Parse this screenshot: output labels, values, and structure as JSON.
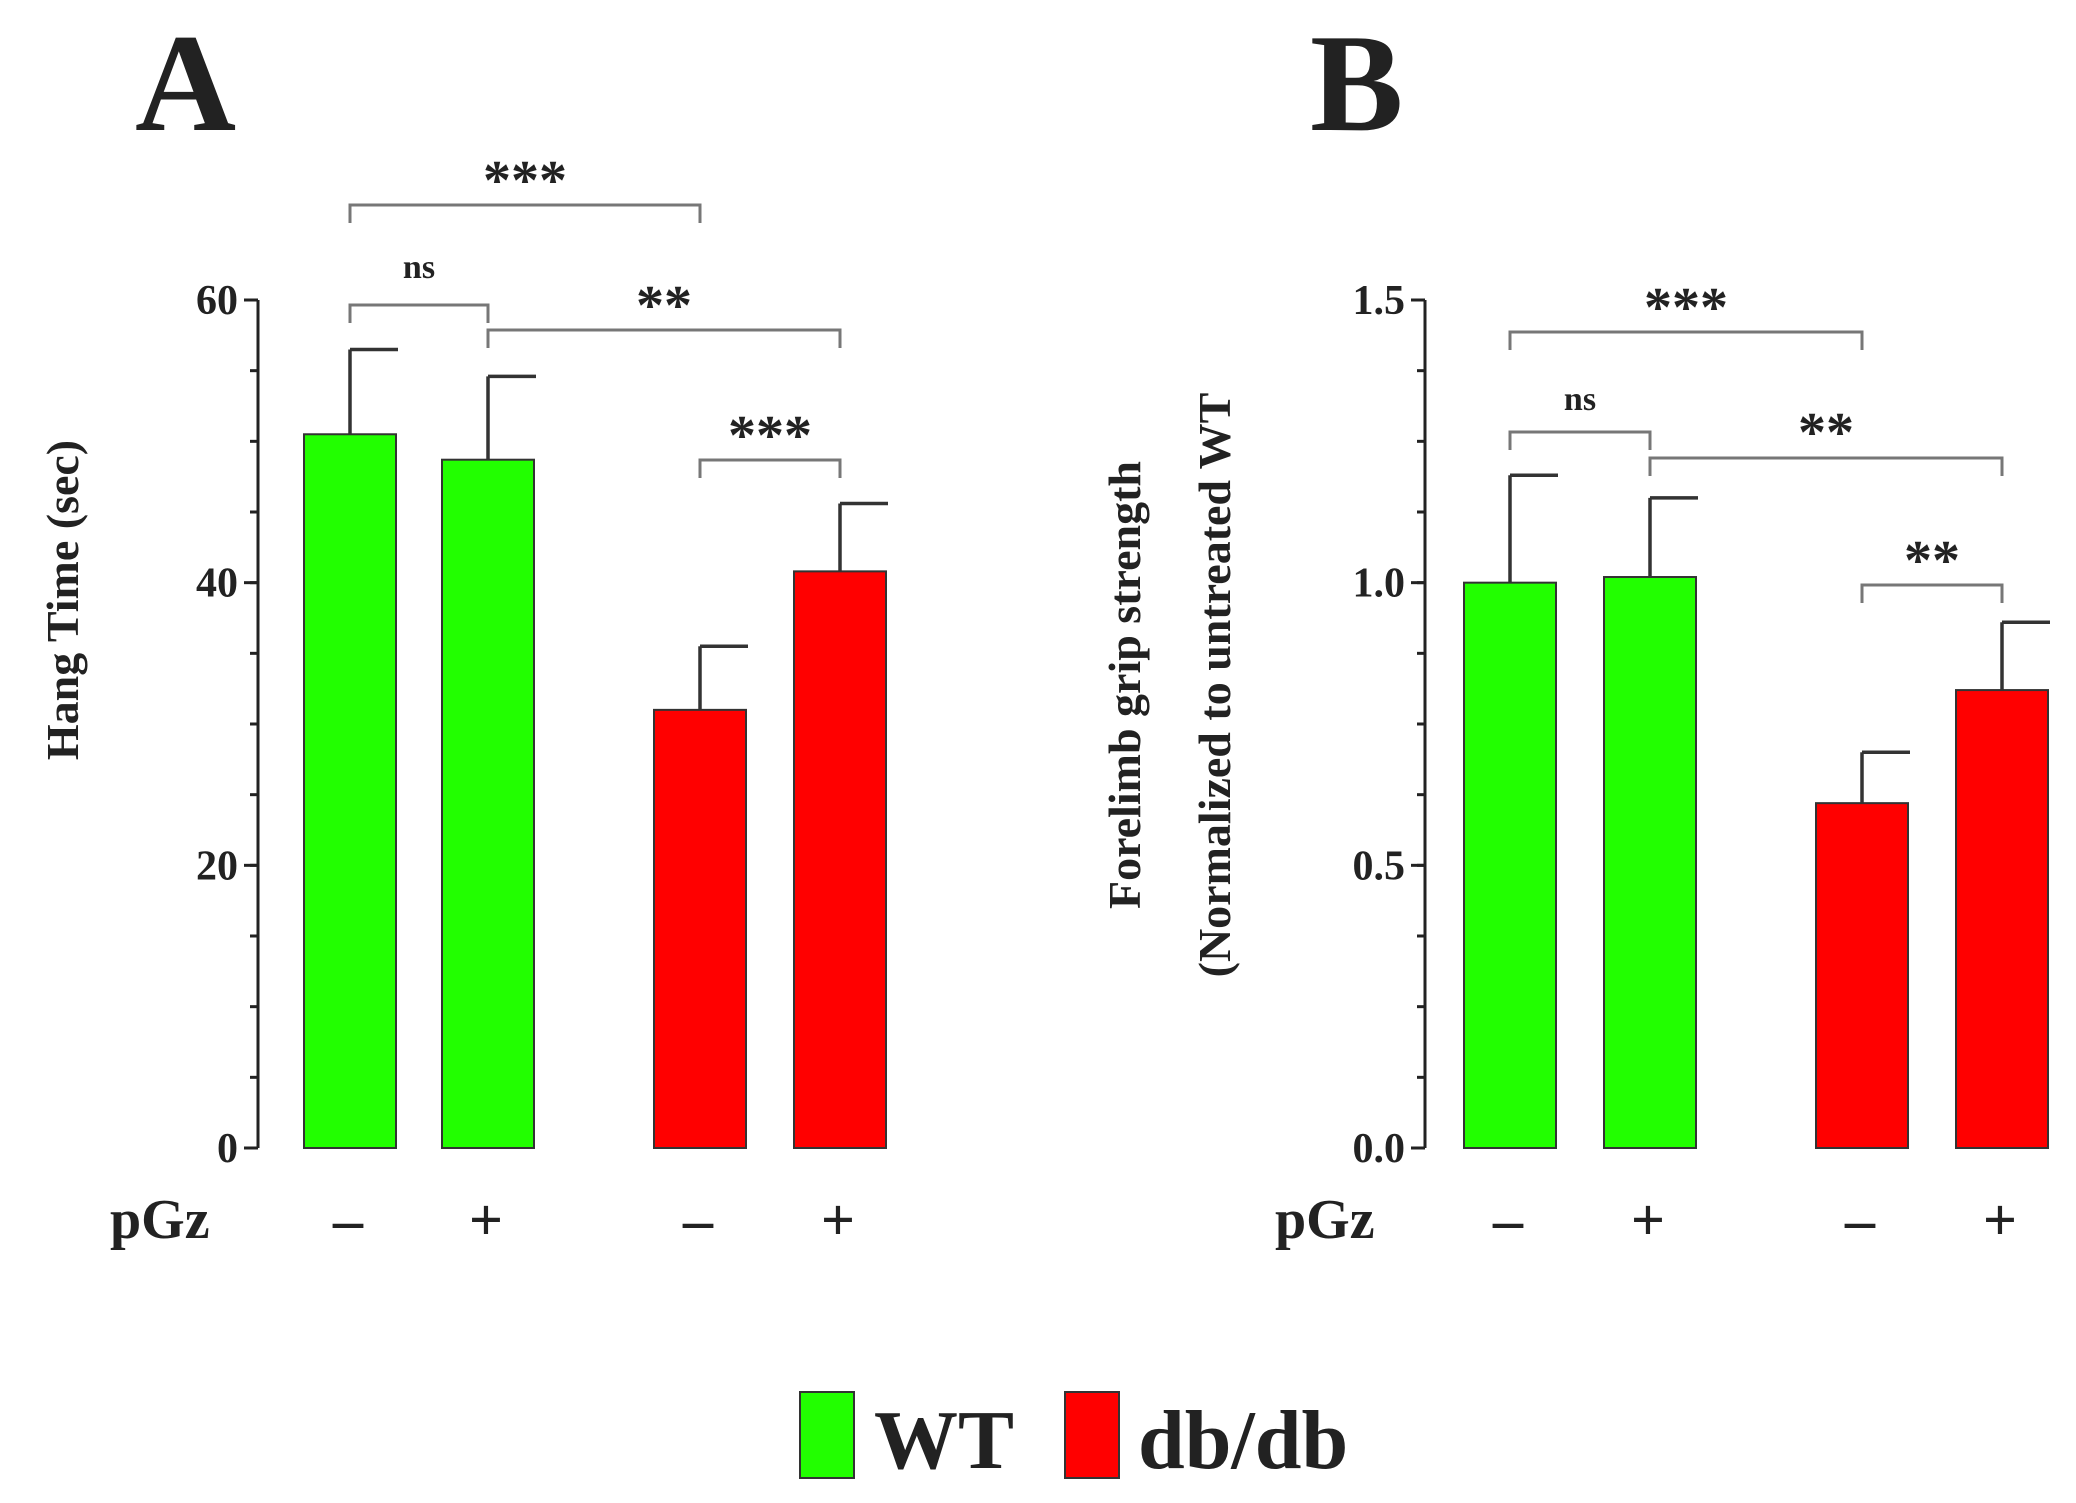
{
  "colors": {
    "WT": "#22ff00",
    "db/db": "#ff0000"
  },
  "legend": [
    {
      "label": "WT",
      "color_key": "WT"
    },
    {
      "label": "db/db",
      "color_key": "db/db"
    }
  ],
  "chart_data": [
    {
      "type": "bar",
      "panel_label": "A",
      "title": "",
      "ylabel": "Hang Time (sec)",
      "ylabel_lines": [
        "Hang Time (sec)"
      ],
      "xlabel": "pGz",
      "ylim": [
        0,
        60
      ],
      "yticks": [
        0,
        20,
        40,
        60
      ],
      "ytick_labels": [
        "0",
        "20",
        "40",
        "60"
      ],
      "categories": [
        "–",
        "+",
        "–",
        "+"
      ],
      "groups": [
        "WT",
        "WT",
        "db/db",
        "db/db"
      ],
      "values": [
        50.5,
        48.7,
        31.0,
        40.8
      ],
      "errors": [
        6.0,
        5.9,
        4.5,
        4.8
      ],
      "significance": [
        {
          "from": 0,
          "to": 1,
          "label": "ns"
        },
        {
          "from": 1,
          "to": 3,
          "label": "**"
        },
        {
          "from": 2,
          "to": 3,
          "label": "***"
        },
        {
          "from": 0,
          "to": 2,
          "label": "***"
        }
      ]
    },
    {
      "type": "bar",
      "panel_label": "B",
      "title": "",
      "ylabel": "Forelimb grip strength (Normalized to untreated WT",
      "ylabel_lines": [
        "Forelimb grip strength",
        "(Normalized to untreated WT"
      ],
      "xlabel": "pGz",
      "ylim": [
        0,
        1.5
      ],
      "yticks": [
        0,
        0.5,
        1.0,
        1.5
      ],
      "ytick_labels": [
        "0.0",
        "0.5",
        "1.0",
        "1.5"
      ],
      "categories": [
        "–",
        "+",
        "–",
        "+"
      ],
      "groups": [
        "WT",
        "WT",
        "db/db",
        "db/db"
      ],
      "values": [
        1.0,
        1.01,
        0.61,
        0.81
      ],
      "errors": [
        0.19,
        0.14,
        0.09,
        0.12
      ],
      "significance": [
        {
          "from": 0,
          "to": 1,
          "label": "ns"
        },
        {
          "from": 1,
          "to": 3,
          "label": "**"
        },
        {
          "from": 2,
          "to": 3,
          "label": "**"
        },
        {
          "from": 0,
          "to": 2,
          "label": "***"
        }
      ]
    }
  ]
}
